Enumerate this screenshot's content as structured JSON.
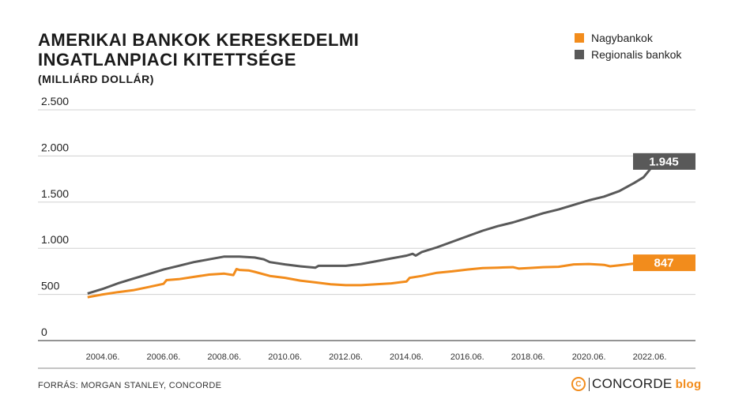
{
  "header": {
    "title": "AMERIKAI BANKOK KERESKEDELMI\nINGATLANPIACI KITETTSÉGE",
    "subtitle": "(MILLIÁRD DOLLÁR)"
  },
  "footer": {
    "source": "FORRÁS: MORGAN STANLEY, CONCORDE",
    "logo_mark": "C",
    "logo_name": "CONCORDE",
    "logo_blog": "blog"
  },
  "chart_data": {
    "type": "line",
    "title": "AMERIKAI BANKOK KERESKEDELMI INGATLANPIACI KITETTSÉGE",
    "subtitle": "(MILLIÁRD DOLLÁR)",
    "xlabel": "",
    "ylabel": "",
    "xlim": [
      2003.8,
      2023.2
    ],
    "ylim": [
      0,
      2500
    ],
    "yticks": [
      0,
      500,
      1000,
      1500,
      2000,
      2500
    ],
    "ytick_labels": [
      "0",
      "500",
      "1.000",
      "1.500",
      "2.000",
      "2.500"
    ],
    "xticks": [
      2004.5,
      2006.5,
      2008.5,
      2010.5,
      2012.5,
      2014.5,
      2016.5,
      2018.5,
      2020.5,
      2022.5
    ],
    "xtick_labels": [
      "2004.06.",
      "2006.06.",
      "2008.06.",
      "2010.06.",
      "2012.06.",
      "2014.06.",
      "2016.06.",
      "2018.06.",
      "2020.06.",
      "2022.06."
    ],
    "grid": true,
    "legend_position": "top-right",
    "series": [
      {
        "name": "Nagybankok",
        "color": "#f28c1c",
        "end_label": "847",
        "x": [
          2004.0,
          2004.5,
          2005.0,
          2005.5,
          2006.0,
          2006.5,
          2006.6,
          2007.0,
          2007.5,
          2008.0,
          2008.5,
          2008.8,
          2008.9,
          2009.0,
          2009.3,
          2009.5,
          2010.0,
          2010.5,
          2011.0,
          2011.5,
          2012.0,
          2012.5,
          2013.0,
          2013.5,
          2014.0,
          2014.5,
          2014.6,
          2015.0,
          2015.5,
          2016.0,
          2016.5,
          2017.0,
          2017.5,
          2018.0,
          2018.2,
          2018.5,
          2019.0,
          2019.5,
          2020.0,
          2020.5,
          2021.0,
          2021.2,
          2021.5,
          2022.0,
          2022.5,
          2022.75
        ],
        "values": [
          470,
          500,
          525,
          545,
          580,
          615,
          655,
          665,
          690,
          715,
          725,
          710,
          775,
          765,
          760,
          745,
          700,
          680,
          650,
          630,
          610,
          600,
          600,
          610,
          620,
          640,
          680,
          700,
          735,
          750,
          770,
          785,
          790,
          795,
          780,
          785,
          795,
          800,
          825,
          830,
          820,
          805,
          815,
          835,
          840,
          847
        ]
      },
      {
        "name": "Regionalis bankok",
        "color": "#595959",
        "end_label": "1.945",
        "x": [
          2004.0,
          2004.5,
          2005.0,
          2005.5,
          2006.0,
          2006.5,
          2007.0,
          2007.5,
          2008.0,
          2008.5,
          2009.0,
          2009.5,
          2009.8,
          2010.0,
          2010.5,
          2011.0,
          2011.5,
          2011.6,
          2012.0,
          2012.5,
          2013.0,
          2013.5,
          2014.0,
          2014.5,
          2014.7,
          2014.8,
          2015.0,
          2015.5,
          2016.0,
          2016.5,
          2017.0,
          2017.5,
          2018.0,
          2018.5,
          2019.0,
          2019.5,
          2020.0,
          2020.5,
          2021.0,
          2021.5,
          2022.0,
          2022.3,
          2022.5,
          2022.75
        ],
        "values": [
          510,
          560,
          620,
          670,
          720,
          770,
          810,
          850,
          880,
          910,
          910,
          900,
          880,
          850,
          825,
          805,
          790,
          810,
          810,
          810,
          830,
          860,
          890,
          920,
          940,
          920,
          960,
          1010,
          1070,
          1130,
          1190,
          1240,
          1280,
          1330,
          1380,
          1420,
          1470,
          1520,
          1560,
          1620,
          1710,
          1770,
          1850,
          1945
        ]
      }
    ]
  }
}
